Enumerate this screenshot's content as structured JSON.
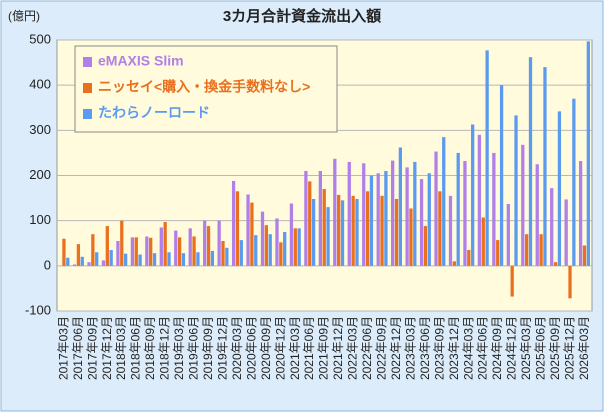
{
  "chart_data": {
    "type": "bar",
    "title": "3カ月合計資金流出入額",
    "y_label": "(億円)",
    "categories": [
      "2017年03月",
      "2017年06月",
      "2017年09月",
      "2017年12月",
      "2018年03月",
      "2018年06月",
      "2018年09月",
      "2018年12月",
      "2019年03月",
      "2019年06月",
      "2019年09月",
      "2019年12月",
      "2020年03月",
      "2020年06月",
      "2020年09月",
      "2020年12月",
      "2021年03月",
      "2021年06月",
      "2021年09月",
      "2021年12月",
      "2022年03月",
      "2022年06月",
      "2022年09月",
      "2022年12月",
      "2023年03月",
      "2023年06月",
      "2023年09月",
      "2023年12月",
      "2024年03月",
      "2024年06月",
      "2024年09月",
      "2024年12月",
      "2025年03月",
      "2025年06月",
      "2025年09月",
      "2025年12月",
      "2026年03月"
    ],
    "series": [
      {
        "name": "eMAXIS Slim",
        "color": "#b07fe8",
        "values": [
          0,
          3,
          8,
          12,
          55,
          63,
          65,
          85,
          78,
          83,
          100,
          100,
          188,
          158,
          120,
          105,
          138,
          210,
          210,
          237,
          230,
          227,
          205,
          233,
          218,
          192,
          253,
          155,
          232,
          290,
          250,
          137,
          268,
          225,
          172,
          147,
          232
        ]
      },
      {
        "name": "ニッセイ<購入・換金手数料なし>",
        "color": "#e8701e",
        "values": [
          60,
          48,
          70,
          88,
          100,
          63,
          62,
          97,
          63,
          65,
          88,
          55,
          165,
          140,
          90,
          52,
          83,
          187,
          170,
          157,
          155,
          165,
          155,
          148,
          127,
          88,
          165,
          10,
          35,
          107,
          57,
          -68,
          70,
          70,
          8,
          -72,
          45
        ]
      },
      {
        "name": "たわらノーロード",
        "color": "#5b9bef",
        "values": [
          18,
          20,
          30,
          35,
          27,
          25,
          28,
          30,
          28,
          30,
          33,
          40,
          57,
          68,
          70,
          75,
          83,
          148,
          130,
          145,
          148,
          200,
          210,
          262,
          230,
          205,
          285,
          250,
          313,
          477,
          400,
          333,
          462,
          440,
          342,
          370,
          497
        ]
      }
    ],
    "ylim": [
      -100,
      500
    ],
    "yticks": [
      -100,
      0,
      100,
      200,
      300,
      400,
      500
    ],
    "grid": true,
    "legend": "top-left"
  }
}
